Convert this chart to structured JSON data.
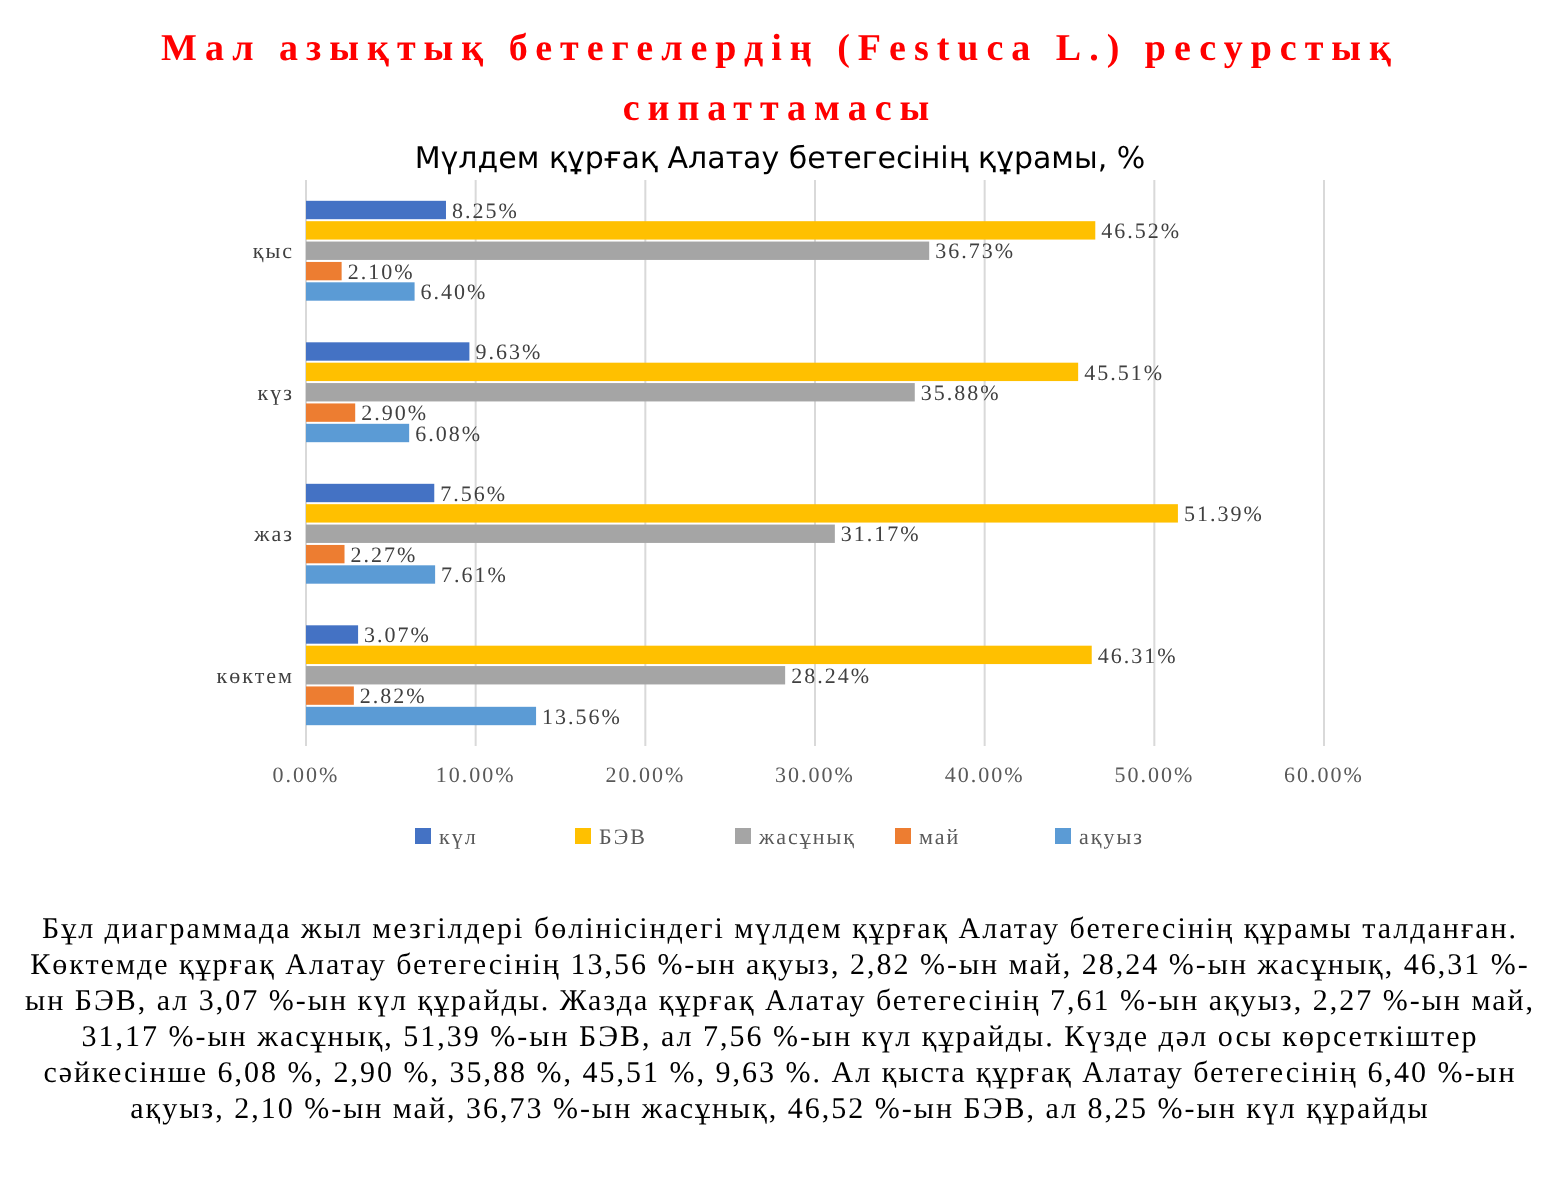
{
  "chart_data": {
    "type": "bar",
    "orientation": "horizontal",
    "title": "Мал азықтық бетегелердің (Festuca L.) ресурстық сипаттамасы",
    "subtitle": "Мүлдем құрғақ Алатау бетегесінің құрамы, %",
    "categories": [
      "қыс",
      "күз",
      "жаз",
      "көктем"
    ],
    "series": [
      {
        "name": "күл",
        "color": "#4472c4",
        "values": [
          8.25,
          9.63,
          7.56,
          3.07
        ],
        "value_labels": [
          "8.25%",
          "9.63%",
          "7.56%",
          "3.07%"
        ]
      },
      {
        "name": "БЭВ",
        "color": "#ffc000",
        "values": [
          46.52,
          45.51,
          51.39,
          46.31
        ],
        "value_labels": [
          "46.52%",
          "45.51%",
          "51.39%",
          "46.31%"
        ]
      },
      {
        "name": "жасұнық",
        "color": "#a5a5a5",
        "values": [
          36.73,
          35.88,
          31.17,
          28.24
        ],
        "value_labels": [
          "36.73%",
          "35.88%",
          "31.17%",
          "28.24%"
        ]
      },
      {
        "name": "май",
        "color": "#ed7d31",
        "values": [
          2.1,
          2.9,
          2.27,
          2.82
        ],
        "value_labels": [
          "2.10%",
          "2.90%",
          "2.27%",
          "2.82%"
        ]
      },
      {
        "name": "ақуыз",
        "color": "#5b9bd5",
        "values": [
          6.4,
          6.08,
          7.61,
          13.56
        ],
        "value_labels": [
          "6.40%",
          "6.08%",
          "7.61%",
          "13.56%"
        ]
      }
    ],
    "xlim": [
      0,
      60
    ],
    "xticks": [
      {
        "value": 0,
        "label": "0.00%"
      },
      {
        "value": 10,
        "label": "10.00%"
      },
      {
        "value": 20,
        "label": "20.00%"
      },
      {
        "value": 30,
        "label": "30.00%"
      },
      {
        "value": 40,
        "label": "40.00%"
      },
      {
        "value": 50,
        "label": "50.00%"
      },
      {
        "value": 60,
        "label": "60.00%"
      }
    ],
    "grid": "x",
    "legend": "bottom",
    "annotations": [
      "Бұл диаграммада жыл мезгілдері бөлінісіндегі мүлдем құрғақ Алатау бетегесінің құрамы талданған. Көктемде құрғақ Алатау бетегесінің 13,56 %-ын ақуыз, 2,82 %-ын май, 28,24 %-ын жасұнық, 46,31 %-ын БЭВ, ал 3,07 %-ын күл құрайды. Жазда құрғақ Алатау бетегесінің 7,61 %-ын ақуыз, 2,27 %-ын май, 31,17 %-ын жасұнық, 51,39 %-ын БЭВ, ал 7,56 %-ын күл құрайды. Күзде дәл осы көрсеткіштер сәйкесінше 6,08 %, 2,90 %, 35,88 %, 45,51 %, 9,63 %. Ал қыста құрғақ Алатау бетегесінің 6,40 %-ын ақуыз, 2,10 %-ын май, 36,73 %-ын жасұнық, 46,52 %-ын БЭВ, ал 8,25 %-ын күл құрайды"
    ]
  }
}
